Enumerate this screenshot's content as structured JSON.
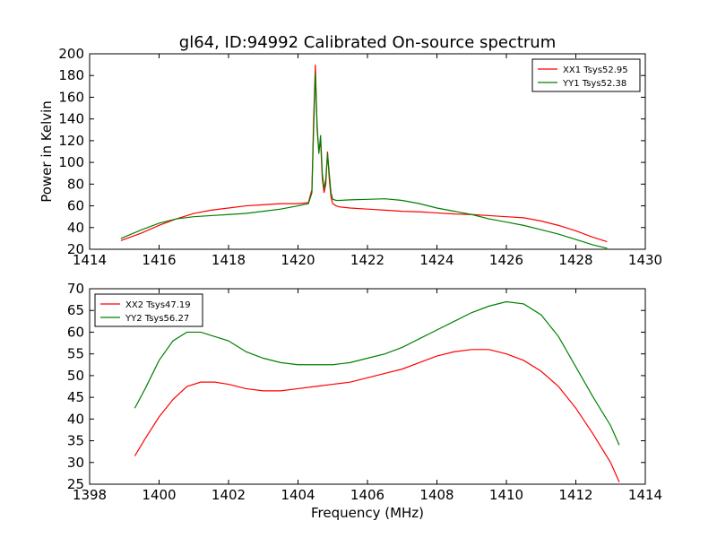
{
  "figure": {
    "title": "gl64, ID:94992 Calibrated On-source spectrum",
    "ylabel": "Power in Kelvin",
    "xlabel": "Frequency (MHz)"
  },
  "chart_data": [
    {
      "type": "line",
      "title": "gl64, ID:94992 Calibrated On-source spectrum",
      "xlabel": "",
      "ylabel": "Power in Kelvin",
      "xlim": [
        1414,
        1430
      ],
      "ylim": [
        20,
        200
      ],
      "xticks": [
        "1414",
        "1416",
        "1418",
        "1420",
        "1422",
        "1424",
        "1426",
        "1428",
        "1430"
      ],
      "yticks": [
        "20",
        "40",
        "60",
        "80",
        "100",
        "120",
        "140",
        "160",
        "180",
        "200"
      ],
      "grid": false,
      "legend_position": "top-right",
      "series": [
        {
          "name": "XX1 Tsys52.95",
          "color": "#ff0000",
          "x": [
            1414.9,
            1415.5,
            1416.0,
            1416.5,
            1417.0,
            1417.5,
            1418.0,
            1418.5,
            1419.0,
            1419.5,
            1420.0,
            1420.3,
            1420.4,
            1420.45,
            1420.5,
            1420.55,
            1420.6,
            1420.65,
            1420.7,
            1420.75,
            1420.8,
            1420.85,
            1420.9,
            1420.95,
            1421.0,
            1421.1,
            1421.2,
            1421.5,
            1422.0,
            1422.5,
            1423.0,
            1423.5,
            1424.0,
            1424.5,
            1425.0,
            1425.5,
            1426.0,
            1426.5,
            1427.0,
            1427.5,
            1428.0,
            1428.5,
            1428.9
          ],
          "y": [
            28,
            35,
            42,
            48,
            53,
            56,
            58,
            60,
            61,
            62,
            62,
            63,
            75,
            140,
            190,
            130,
            110,
            120,
            85,
            72,
            80,
            110,
            85,
            68,
            62,
            60,
            59,
            58,
            57,
            56,
            55,
            54.5,
            53.5,
            52.5,
            52,
            51,
            50,
            49,
            46,
            42,
            37,
            31,
            27
          ]
        },
        {
          "name": "YY1 Tsys52.38",
          "color": "#008000",
          "x": [
            1414.9,
            1415.5,
            1416.0,
            1416.5,
            1417.0,
            1417.5,
            1418.0,
            1418.5,
            1419.0,
            1419.5,
            1420.0,
            1420.3,
            1420.4,
            1420.45,
            1420.5,
            1420.55,
            1420.6,
            1420.65,
            1420.7,
            1420.75,
            1420.8,
            1420.85,
            1420.9,
            1420.95,
            1421.0,
            1421.1,
            1421.2,
            1421.5,
            1422.0,
            1422.5,
            1423.0,
            1423.5,
            1424.0,
            1424.5,
            1425.0,
            1425.5,
            1426.0,
            1426.5,
            1427.0,
            1427.5,
            1428.0,
            1428.5,
            1428.9
          ],
          "y": [
            30,
            38,
            44,
            48,
            50,
            51,
            52,
            53,
            55,
            57,
            60,
            62,
            72,
            130,
            182,
            135,
            108,
            125,
            90,
            75,
            85,
            108,
            90,
            72,
            66,
            65,
            65,
            65.5,
            66,
            66.5,
            65,
            62,
            58,
            55,
            52,
            48,
            45,
            42,
            38,
            34,
            29,
            24,
            21
          ]
        }
      ]
    },
    {
      "type": "line",
      "title": "",
      "xlabel": "Frequency (MHz)",
      "ylabel": "",
      "xlim": [
        1398,
        1414
      ],
      "ylim": [
        25,
        70
      ],
      "xticks": [
        "1398",
        "1400",
        "1402",
        "1404",
        "1406",
        "1408",
        "1410",
        "1412",
        "1414"
      ],
      "yticks": [
        "25",
        "30",
        "35",
        "40",
        "45",
        "50",
        "55",
        "60",
        "65",
        "70"
      ],
      "grid": false,
      "legend_position": "top-left",
      "series": [
        {
          "name": "XX2 Tsys47.19",
          "color": "#ff0000",
          "x": [
            1399.3,
            1399.6,
            1400.0,
            1400.4,
            1400.8,
            1401.2,
            1401.6,
            1402.0,
            1402.5,
            1403.0,
            1403.5,
            1404.0,
            1404.5,
            1405.0,
            1405.5,
            1406.0,
            1406.5,
            1407.0,
            1407.5,
            1408.0,
            1408.5,
            1409.0,
            1409.5,
            1410.0,
            1410.5,
            1411.0,
            1411.5,
            1412.0,
            1412.5,
            1413.0,
            1413.25
          ],
          "y": [
            31.5,
            35.5,
            40.5,
            44.5,
            47.5,
            48.5,
            48.5,
            48,
            47,
            46.5,
            46.5,
            47,
            47.5,
            48,
            48.5,
            49.5,
            50.5,
            51.5,
            53,
            54.5,
            55.5,
            56,
            56,
            55,
            53.5,
            51,
            47.5,
            42.5,
            36.5,
            30,
            25.5
          ]
        },
        {
          "name": "YY2 Tsys56.27",
          "color": "#008000",
          "x": [
            1399.3,
            1399.6,
            1400.0,
            1400.4,
            1400.8,
            1401.2,
            1401.6,
            1402.0,
            1402.5,
            1403.0,
            1403.5,
            1404.0,
            1404.5,
            1405.0,
            1405.5,
            1406.0,
            1406.5,
            1407.0,
            1407.5,
            1408.0,
            1408.5,
            1409.0,
            1409.5,
            1410.0,
            1410.5,
            1411.0,
            1411.5,
            1412.0,
            1412.5,
            1413.0,
            1413.25
          ],
          "y": [
            42.5,
            47,
            53.5,
            58,
            60,
            60,
            59,
            58,
            55.5,
            54,
            53,
            52.5,
            52.5,
            52.5,
            53,
            54,
            55,
            56.5,
            58.5,
            60.5,
            62.5,
            64.5,
            66,
            67,
            66.5,
            64,
            59,
            52,
            45,
            38.5,
            34
          ]
        }
      ]
    }
  ]
}
